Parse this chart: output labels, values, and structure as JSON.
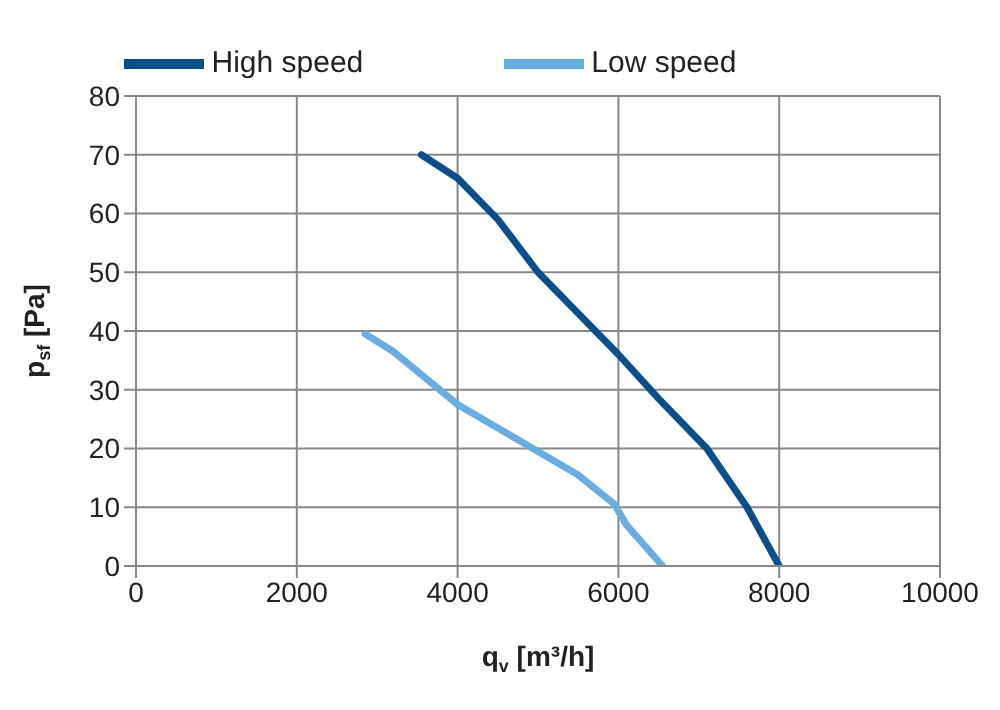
{
  "chart_data": {
    "type": "line",
    "xlabel": "q$_{v}$ [m³/h]",
    "ylabel": "p$_{sf}$ [Pa]",
    "xlim": [
      0,
      10000
    ],
    "xticks": [
      0,
      2000,
      4000,
      6000,
      8000,
      10000
    ],
    "ylim": [
      0,
      80
    ],
    "yticks": [
      0,
      10,
      20,
      30,
      40,
      50,
      60,
      70,
      80
    ],
    "grid": true,
    "legend": "top",
    "marker": "none",
    "line_style": "solid",
    "series": [
      {
        "name": "High speed",
        "color": "#0b4f8a",
        "x": [
          3550,
          4000,
          4500,
          5000,
          5500,
          6000,
          6500,
          7100,
          7600,
          8000
        ],
        "values": [
          70,
          66,
          59,
          50,
          43,
          36,
          28.5,
          20,
          10,
          0
        ]
      },
      {
        "name": "Low speed",
        "color": "#6aaee0",
        "x": [
          2850,
          3200,
          3600,
          4000,
          4500,
          5000,
          5500,
          5950,
          6100,
          6550
        ],
        "values": [
          39.5,
          36.5,
          32,
          27.5,
          23.5,
          19.5,
          15.5,
          10.5,
          7,
          0
        ]
      }
    ]
  }
}
